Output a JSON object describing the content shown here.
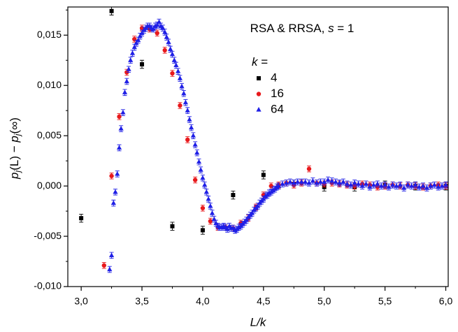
{
  "chart_data": {
    "type": "scatter",
    "annotation": [
      "RSA & RRSA, ",
      "s",
      " = 1"
    ],
    "x_label": "L/k",
    "y_label": [
      "p",
      "j",
      "(L) − ",
      "p",
      "j",
      "(∞)"
    ],
    "legend_title": [
      "k",
      " ="
    ],
    "legend": "right",
    "xlim": [
      2.89,
      6.02
    ],
    "ylim": [
      -0.01,
      0.0178
    ],
    "xticks": [
      {
        "value": 3.0,
        "label": "3,0"
      },
      {
        "value": 3.5,
        "label": "3,5"
      },
      {
        "value": 4.0,
        "label": "4,0"
      },
      {
        "value": 4.5,
        "label": "4,5"
      },
      {
        "value": 5.0,
        "label": "5,0"
      },
      {
        "value": 5.5,
        "label": "5,5"
      },
      {
        "value": 6.0,
        "label": "6,0"
      }
    ],
    "xminorticks": [
      3.25,
      3.75,
      4.25,
      4.75,
      5.25,
      5.75
    ],
    "yticks": [
      {
        "value": -0.01,
        "label": "-0,010"
      },
      {
        "value": -0.005,
        "label": "-0,005"
      },
      {
        "value": 0,
        "label": "0,000"
      },
      {
        "value": 0.005,
        "label": "0,005"
      },
      {
        "value": 0.01,
        "label": "0,010"
      },
      {
        "value": 0.015,
        "label": "0,015"
      }
    ],
    "yminorticks": [
      -0.0075,
      -0.0025,
      0.0025,
      0.0075,
      0.0125,
      0.0175
    ],
    "series": [
      {
        "name": "4",
        "color": "#000000",
        "marker": "square",
        "error": 0.0004,
        "x": [
          3.0,
          3.25,
          3.5,
          3.75,
          4.0,
          4.25,
          4.5,
          4.75,
          5.0,
          5.25,
          5.5,
          5.75,
          6.0
        ],
        "values": [
          -0.0032,
          0.0174,
          0.0121,
          -0.004,
          -0.0044,
          -0.0009,
          0.0011,
          0.0002,
          -0.0001,
          -0.0001,
          0.0001,
          0,
          0
        ]
      },
      {
        "name": "16",
        "color": "#e8191c",
        "marker": "circle",
        "error": 0.0003,
        "x": [
          3.188,
          3.25,
          3.313,
          3.375,
          3.438,
          3.5,
          3.563,
          3.625,
          3.688,
          3.75,
          3.813,
          3.875,
          3.938,
          4.0,
          4.063,
          4.125,
          4.188,
          4.25,
          4.313,
          4.375,
          4.438,
          4.5,
          4.563,
          4.625,
          4.688,
          4.75,
          4.813,
          4.875,
          4.938,
          5.0,
          5.063,
          5.125,
          5.188,
          5.25,
          5.313,
          5.375,
          5.438,
          5.5,
          5.563,
          5.625,
          5.688,
          5.75,
          5.813,
          5.875,
          5.938,
          6.0
        ],
        "values": [
          -0.0079,
          0.001,
          0.0069,
          0.0113,
          0.0146,
          0.0157,
          0.0156,
          0.0152,
          0.0135,
          0.0112,
          0.008,
          0.0046,
          0.0006,
          -0.0022,
          -0.0035,
          -0.0041,
          -0.0041,
          -0.0042,
          -0.0037,
          -0.0032,
          -0.0021,
          -0.0009,
          0,
          0.0001,
          0.0003,
          0.0001,
          0.0003,
          0.0017,
          0.0003,
          0.0002,
          0.0003,
          0.0002,
          0.0001,
          0,
          0.0002,
          0.0001,
          -0.0001,
          0,
          0.0001,
          0,
          0.0001,
          0,
          -0.0001,
          0,
          0.0001,
          0
        ]
      },
      {
        "name": "64",
        "color": "#1f1fe6",
        "marker": "triangle",
        "error": 0.0003,
        "x": [
          3.234,
          3.25,
          3.266,
          3.281,
          3.297,
          3.313,
          3.328,
          3.344,
          3.359,
          3.375,
          3.391,
          3.406,
          3.422,
          3.438,
          3.453,
          3.469,
          3.484,
          3.5,
          3.516,
          3.531,
          3.547,
          3.563,
          3.578,
          3.594,
          3.609,
          3.625,
          3.641,
          3.656,
          3.672,
          3.688,
          3.703,
          3.719,
          3.734,
          3.75,
          3.766,
          3.781,
          3.797,
          3.813,
          3.828,
          3.844,
          3.859,
          3.875,
          3.891,
          3.906,
          3.922,
          3.938,
          3.953,
          3.969,
          3.984,
          4.0,
          4.016,
          4.031,
          4.047,
          4.063,
          4.078,
          4.094,
          4.109,
          4.125,
          4.141,
          4.156,
          4.172,
          4.188,
          4.203,
          4.219,
          4.234,
          4.25,
          4.266,
          4.281,
          4.297,
          4.313,
          4.328,
          4.344,
          4.359,
          4.375,
          4.391,
          4.406,
          4.422,
          4.438,
          4.453,
          4.469,
          4.484,
          4.5,
          4.516,
          4.531,
          4.547,
          4.563,
          4.578,
          4.594,
          4.609,
          4.625,
          4.656,
          4.688,
          4.719,
          4.75,
          4.781,
          4.813,
          4.844,
          4.875,
          4.906,
          4.938,
          4.969,
          5.0,
          5.031,
          5.063,
          5.094,
          5.125,
          5.156,
          5.188,
          5.219,
          5.25,
          5.281,
          5.313,
          5.344,
          5.375,
          5.406,
          5.438,
          5.469,
          5.5,
          5.531,
          5.563,
          5.594,
          5.625,
          5.656,
          5.688,
          5.719,
          5.75,
          5.781,
          5.813,
          5.844,
          5.875,
          5.906,
          5.938,
          5.969,
          6.0
        ],
        "values": [
          -0.0083,
          -0.0069,
          -0.0017,
          -0.0006,
          0.0012,
          0.0038,
          0.0057,
          0.0073,
          0.0093,
          0.0104,
          0.0116,
          0.0125,
          0.0132,
          0.0138,
          0.0142,
          0.0145,
          0.0149,
          0.0152,
          0.0155,
          0.0157,
          0.0159,
          0.0159,
          0.0157,
          0.0156,
          0.0159,
          0.016,
          0.0163,
          0.0159,
          0.0157,
          0.0153,
          0.0148,
          0.0143,
          0.0136,
          0.0131,
          0.0125,
          0.012,
          0.0114,
          0.0107,
          0.0099,
          0.0092,
          0.0083,
          0.0075,
          0.0066,
          0.0058,
          0.005,
          0.0041,
          0.0033,
          0.0024,
          0.0016,
          0.0008,
          0.0001,
          -0.0006,
          -0.0013,
          -0.002,
          -0.0027,
          -0.0033,
          -0.0037,
          -0.004,
          -0.0041,
          -0.0041,
          -0.004,
          -0.0041,
          -0.0043,
          -0.004,
          -0.0042,
          -0.0042,
          -0.0044,
          -0.0043,
          -0.0041,
          -0.004,
          -0.0038,
          -0.0036,
          -0.0034,
          -0.0031,
          -0.0029,
          -0.0027,
          -0.0024,
          -0.0022,
          -0.002,
          -0.0017,
          -0.0015,
          -0.0013,
          -0.001,
          -0.0009,
          -0.0007,
          -0.0006,
          -0.0004,
          -0.0003,
          -0.0001,
          0,
          0.0002,
          0.0003,
          0.0004,
          0.0003,
          0.0004,
          0.0004,
          0.0004,
          0.0003,
          0.0005,
          0.0003,
          0.0004,
          0.0004,
          0.0006,
          0.0005,
          0.0004,
          0.0003,
          0.0004,
          0.0002,
          0.0001,
          0.0003,
          0.0002,
          0,
          0.0002,
          -0.0001,
          0.0001,
          0.0002,
          0,
          0.0001,
          -0.0001,
          0.0001,
          0,
          0.0001,
          -0.0002,
          0.0001,
          0,
          0.0001,
          -0.0001,
          0,
          -0.0002,
          0,
          0.0001,
          -0.0001,
          0,
          0.0001
        ]
      }
    ]
  }
}
